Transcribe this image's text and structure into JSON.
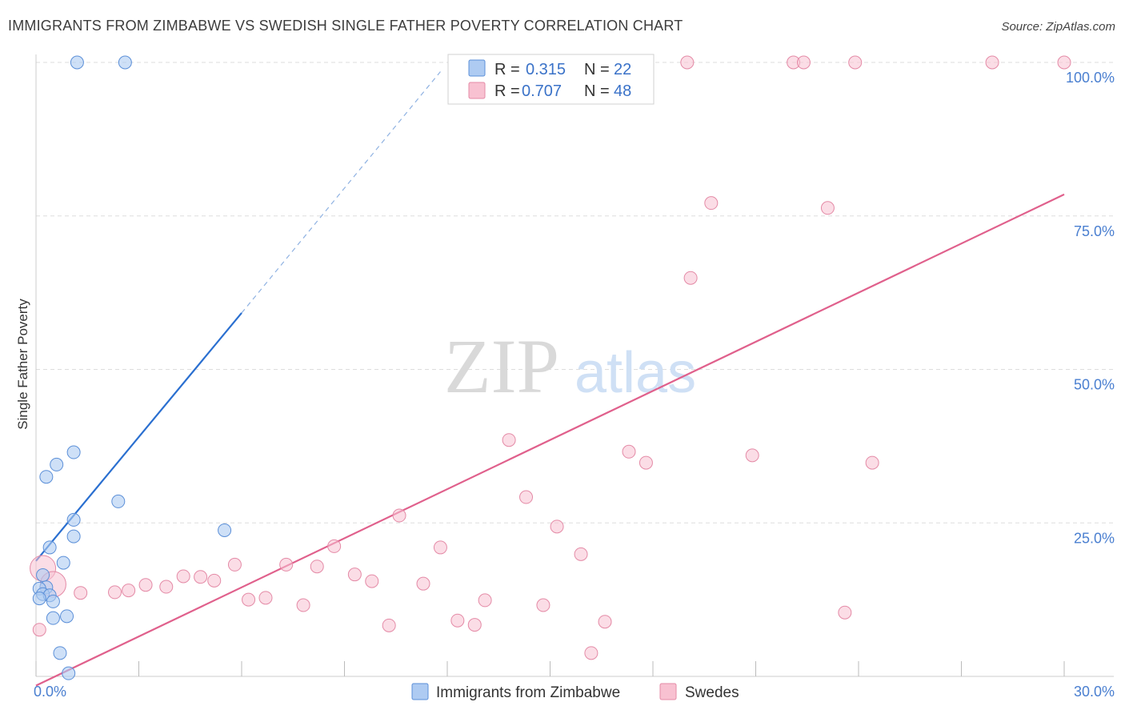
{
  "header": {
    "title": "IMMIGRANTS FROM ZIMBABWE VS SWEDISH SINGLE FATHER POVERTY CORRELATION CHART",
    "source": "Source: ZipAtlas.com"
  },
  "watermark": {
    "zip": "ZIP",
    "atlas": "atlas"
  },
  "colors": {
    "blue_fill": "#aecbf2",
    "blue_stroke": "#5b8fd8",
    "blue_line": "#2a6fd0",
    "pink_fill": "#f8c1d1",
    "pink_stroke": "#e48aa6",
    "pink_line": "#e0608c",
    "grid": "#dddddd",
    "tick_text": "#4a7fd0"
  },
  "legend": {
    "r_label": "R =",
    "n_label": "N =",
    "rows": [
      {
        "r": "0.315",
        "n": "22"
      },
      {
        "r": "0.707",
        "n": "48"
      }
    ]
  },
  "bottom_legend": [
    "Immigrants from Zimbabwe",
    "Swedes"
  ],
  "chart_data": {
    "type": "scatter",
    "title": "IMMIGRANTS FROM ZIMBABWE VS SWEDISH SINGLE FATHER POVERTY CORRELATION CHART",
    "xlabel": "",
    "ylabel": "Single Father Poverty",
    "xlim": [
      0,
      30
    ],
    "ylim": [
      0,
      100
    ],
    "x_tick_labels": [
      "0.0%",
      "30.0%"
    ],
    "y_ticks": [
      25,
      50,
      75,
      100
    ],
    "y_tick_labels": [
      "25.0%",
      "50.0%",
      "75.0%",
      "100.0%"
    ],
    "series": [
      {
        "name": "Immigrants from Zimbabwe",
        "R": 0.315,
        "N": 22,
        "points": [
          [
            1.2,
            100
          ],
          [
            2.6,
            100
          ],
          [
            1.1,
            36.5
          ],
          [
            0.6,
            34.5
          ],
          [
            0.3,
            32.5
          ],
          [
            2.4,
            28.5
          ],
          [
            1.1,
            25.5
          ],
          [
            1.1,
            22.8
          ],
          [
            0.4,
            21.0
          ],
          [
            5.5,
            23.8
          ],
          [
            0.8,
            18.5
          ],
          [
            0.2,
            16.5
          ],
          [
            0.3,
            14.5
          ],
          [
            0.1,
            14.3
          ],
          [
            0.2,
            13.4
          ],
          [
            0.4,
            13.2
          ],
          [
            0.1,
            12.7
          ],
          [
            0.5,
            12.2
          ],
          [
            0.5,
            9.5
          ],
          [
            0.9,
            9.8
          ],
          [
            0.7,
            3.8
          ],
          [
            0.95,
            0.5
          ]
        ],
        "trend": {
          "x_start": 0.0,
          "y_start": 18.8,
          "x_solid_end": 6.0,
          "y_solid_end": 59.2,
          "x_dash_end": 11.8,
          "y_dash_end": 98.5
        }
      },
      {
        "name": "Swedes",
        "R": 0.707,
        "N": 48,
        "points": [
          [
            19.0,
            100
          ],
          [
            22.1,
            100
          ],
          [
            22.4,
            100
          ],
          [
            23.9,
            100
          ],
          [
            27.9,
            100
          ],
          [
            30.0,
            100
          ],
          [
            19.7,
            77.1
          ],
          [
            23.1,
            76.3
          ],
          [
            19.1,
            64.9
          ],
          [
            13.8,
            38.5
          ],
          [
            17.3,
            36.6
          ],
          [
            17.8,
            34.8
          ],
          [
            20.9,
            36.0
          ],
          [
            24.4,
            34.8
          ],
          [
            14.3,
            29.2
          ],
          [
            10.6,
            26.2
          ],
          [
            15.2,
            24.4
          ],
          [
            8.7,
            21.2
          ],
          [
            11.8,
            21.0
          ],
          [
            15.9,
            19.9
          ],
          [
            5.8,
            18.2
          ],
          [
            7.3,
            18.2
          ],
          [
            8.2,
            17.9
          ],
          [
            4.3,
            16.3
          ],
          [
            4.8,
            16.2
          ],
          [
            5.2,
            15.6
          ],
          [
            9.3,
            16.6
          ],
          [
            9.8,
            15.5
          ],
          [
            11.3,
            15.1
          ],
          [
            3.2,
            14.9
          ],
          [
            3.8,
            14.6
          ],
          [
            2.7,
            14.0
          ],
          [
            2.3,
            13.7
          ],
          [
            1.3,
            13.6
          ],
          [
            0.2,
            17.6
          ],
          [
            0.5,
            15.0
          ],
          [
            6.2,
            12.5
          ],
          [
            6.7,
            12.8
          ],
          [
            7.8,
            11.6
          ],
          [
            13.1,
            12.4
          ],
          [
            14.8,
            11.6
          ],
          [
            23.6,
            10.4
          ],
          [
            10.3,
            8.3
          ],
          [
            12.3,
            9.1
          ],
          [
            12.8,
            8.4
          ],
          [
            16.6,
            8.9
          ],
          [
            16.2,
            3.8
          ],
          [
            0.1,
            7.6
          ]
        ],
        "trend": {
          "x_start": 0.0,
          "y_start": -1.5,
          "x_end": 30.0,
          "y_end": 78.5
        }
      }
    ]
  }
}
